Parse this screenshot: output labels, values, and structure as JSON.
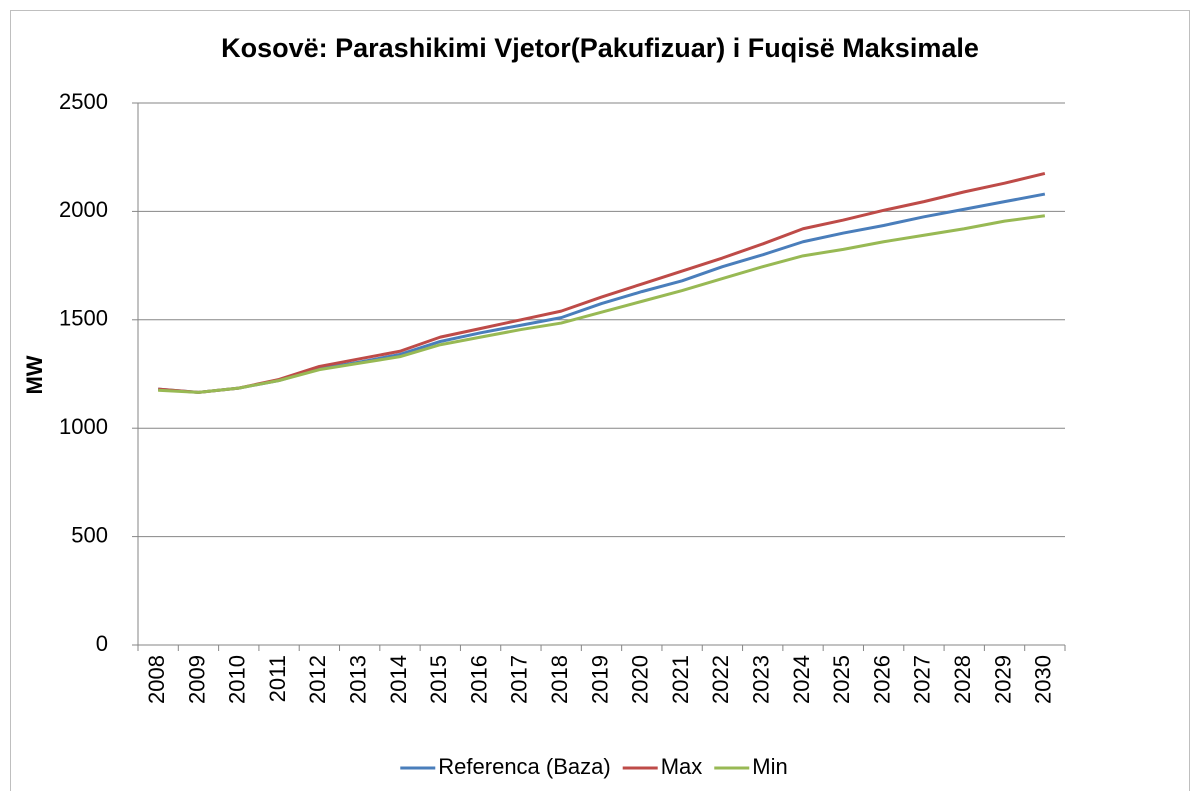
{
  "chart_data": {
    "type": "line",
    "title": "Kosovë: Parashikimi Vjetor(Pakufizuar) i Fuqisë Maksimale",
    "y_label": "MW",
    "categories": [
      "2008",
      "2009",
      "2010",
      "2011",
      "2012",
      "2013",
      "2014",
      "2015",
      "2016",
      "2017",
      "2018",
      "2019",
      "2020",
      "2021",
      "2022",
      "2023",
      "2024",
      "2025",
      "2026",
      "2027",
      "2028",
      "2029",
      "2030"
    ],
    "series": [
      {
        "name": "Referenca (Baza)",
        "color": "#4a7ebb",
        "values": [
          1180,
          1165,
          1185,
          1220,
          1275,
          1305,
          1340,
          1400,
          1440,
          1475,
          1510,
          1575,
          1630,
          1680,
          1745,
          1800,
          1860,
          1900,
          1935,
          1975,
          2010,
          2045,
          2080
        ]
      },
      {
        "name": "Max",
        "color": "#be4b48",
        "values": [
          1180,
          1165,
          1185,
          1225,
          1285,
          1320,
          1355,
          1420,
          1460,
          1500,
          1540,
          1605,
          1665,
          1725,
          1785,
          1850,
          1920,
          1960,
          2005,
          2045,
          2090,
          2130,
          2175
        ]
      },
      {
        "name": "Min",
        "color": "#98b954",
        "values": [
          1175,
          1165,
          1185,
          1220,
          1270,
          1300,
          1330,
          1385,
          1420,
          1455,
          1485,
          1535,
          1585,
          1635,
          1690,
          1745,
          1795,
          1825,
          1860,
          1890,
          1920,
          1955,
          1980
        ]
      }
    ],
    "ylim": [
      0,
      2500
    ],
    "yticks": [
      0,
      500,
      1000,
      1500,
      2000,
      2500
    ],
    "grid": true,
    "legend": "bottom"
  }
}
